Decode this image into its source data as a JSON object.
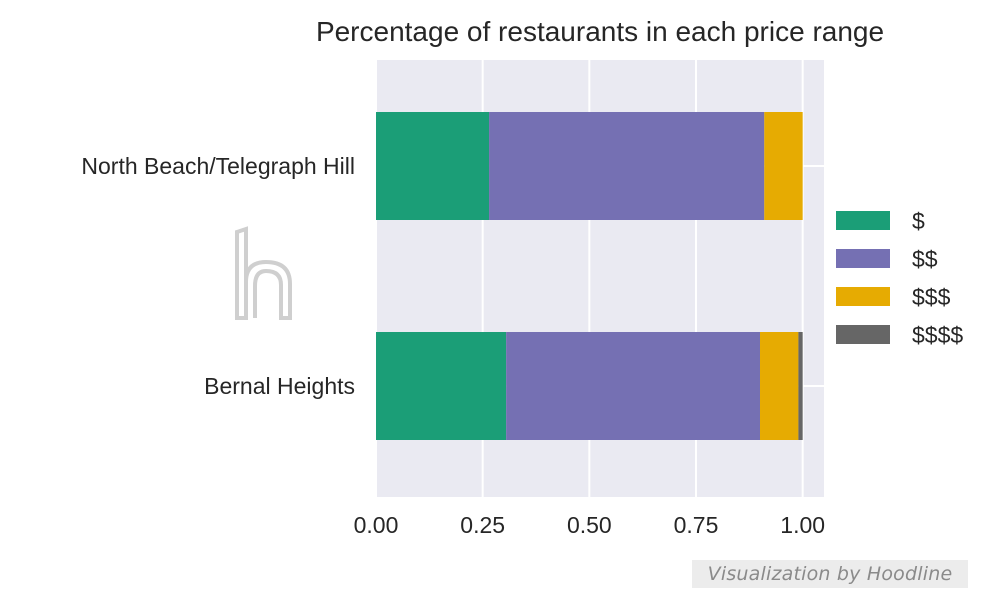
{
  "chart_data": {
    "type": "bar",
    "orientation": "horizontal",
    "stacked": true,
    "title": "Percentage of restaurants in each price range",
    "xlabel": "",
    "ylabel": "",
    "xlim": [
      0,
      1.05
    ],
    "x_ticks": [
      "0.00",
      "0.25",
      "0.50",
      "0.75",
      "1.00"
    ],
    "grid": true,
    "legend_position": "right",
    "categories": [
      "North Beach/Telegraph Hill",
      "Bernal Heights"
    ],
    "series": [
      {
        "name": "$",
        "color": "#1b9e77",
        "values": [
          0.265,
          0.305
        ]
      },
      {
        "name": "$$",
        "color": "#7570b3",
        "values": [
          0.645,
          0.595
        ]
      },
      {
        "name": "$$$",
        "color": "#e6ab02",
        "values": [
          0.09,
          0.09
        ]
      },
      {
        "name": "$$$$",
        "color": "#666666",
        "values": [
          0.0,
          0.01
        ]
      }
    ]
  },
  "credit": "Visualization by Hoodline",
  "watermark_icon": "hoodline-h-logo-icon"
}
